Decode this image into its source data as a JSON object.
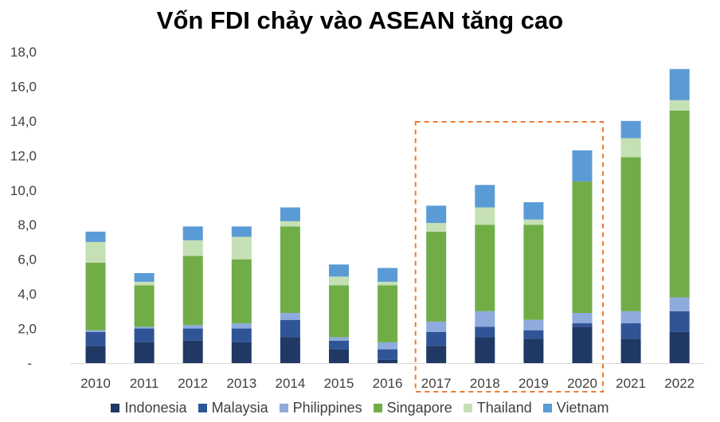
{
  "chart_data": {
    "type": "bar",
    "stacked": true,
    "title": "Vốn FDI chảy vào ASEAN tăng cao",
    "categories": [
      "2010",
      "2011",
      "2012",
      "2013",
      "2014",
      "2015",
      "2016",
      "2017",
      "2018",
      "2019",
      "2020",
      "2021",
      "2022"
    ],
    "y_ticks": [
      "-",
      "2,0",
      "4,0",
      "6,0",
      "8,0",
      "10,0",
      "12,0",
      "14,0",
      "16,0",
      "18,0"
    ],
    "ylim": [
      0,
      18
    ],
    "grid": false,
    "legend_position": "bottom",
    "highlight": {
      "from": "2017",
      "to": "2020",
      "color": "#ed7d31",
      "style": "dashed"
    },
    "series": [
      {
        "name": "Indonesia",
        "color": "#1f3864",
        "values": [
          1.0,
          1.2,
          1.3,
          1.2,
          1.5,
          0.8,
          0.2,
          1.0,
          1.5,
          1.4,
          2.1,
          1.4,
          1.8
        ]
      },
      {
        "name": "Malaysia",
        "color": "#2f5597",
        "values": [
          0.8,
          0.8,
          0.7,
          0.8,
          1.0,
          0.5,
          0.6,
          0.8,
          0.6,
          0.5,
          0.2,
          0.9,
          1.2
        ]
      },
      {
        "name": "Philippines",
        "color": "#8faadc",
        "values": [
          0.1,
          0.1,
          0.2,
          0.3,
          0.4,
          0.2,
          0.4,
          0.6,
          0.9,
          0.6,
          0.6,
          0.7,
          0.8
        ]
      },
      {
        "name": "Singapore",
        "color": "#70ad47",
        "values": [
          3.9,
          2.4,
          4.0,
          3.7,
          5.0,
          3.0,
          3.3,
          5.2,
          5.0,
          5.5,
          7.6,
          8.9,
          10.8
        ]
      },
      {
        "name": "Thailand",
        "color": "#c5e0b4",
        "values": [
          1.2,
          0.2,
          0.9,
          1.3,
          0.3,
          0.5,
          0.2,
          0.5,
          1.0,
          0.3,
          0.0,
          1.1,
          0.6
        ]
      },
      {
        "name": "Vietnam",
        "color": "#5b9bd5",
        "values": [
          0.6,
          0.5,
          0.8,
          0.6,
          0.8,
          0.7,
          0.8,
          1.0,
          1.3,
          1.0,
          1.8,
          1.0,
          1.8
        ]
      }
    ]
  }
}
